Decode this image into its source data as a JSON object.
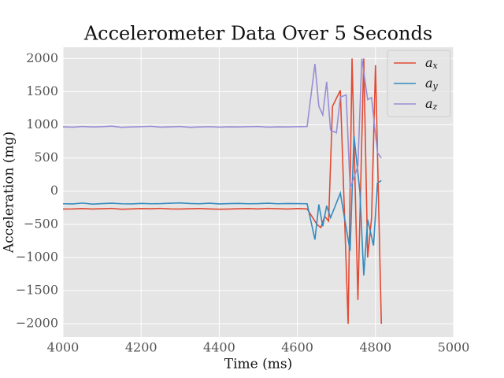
{
  "chart_data": {
    "type": "line",
    "title": "Accelerometer Data Over 5 Seconds",
    "x_label": "Time (ms)",
    "y_label": "Acceleration (mg)",
    "xlim": [
      4000,
      5000
    ],
    "xticks": [
      4000,
      4200,
      4400,
      4600,
      4800,
      5000
    ],
    "ylim": [
      -2200,
      2170
    ],
    "yticks": [
      {
        "value": -2000,
        "label": "−2000"
      },
      {
        "value": -1500,
        "label": "−1500"
      },
      {
        "value": -1000,
        "label": "−1000"
      },
      {
        "value": -500,
        "label": "−500"
      },
      0,
      500,
      1000,
      1500,
      2000
    ],
    "grid": true,
    "legend": "upper right",
    "series": [
      {
        "name": "a_x",
        "color": "#e24a33",
        "x": [
          4000,
          4025,
          4050,
          4075,
          4100,
          4125,
          4150,
          4175,
          4200,
          4225,
          4250,
          4275,
          4300,
          4325,
          4350,
          4375,
          4400,
          4425,
          4450,
          4475,
          4500,
          4525,
          4550,
          4575,
          4600,
          4625,
          4650,
          4660,
          4670,
          4680,
          4690,
          4710,
          4730,
          4740,
          4755,
          4770,
          4780,
          4790,
          4800,
          4815
        ],
        "values": [
          -270,
          -268,
          -262,
          -270,
          -265,
          -260,
          -272,
          -268,
          -262,
          -265,
          -260,
          -268,
          -270,
          -265,
          -262,
          -268,
          -272,
          -270,
          -265,
          -262,
          -268,
          -260,
          -265,
          -270,
          -262,
          -268,
          -500,
          -550,
          -380,
          -450,
          1280,
          1520,
          -2000,
          2000,
          -1640,
          2000,
          -1000,
          -400,
          1900,
          -2000
        ]
      },
      {
        "name": "a_y",
        "color": "#348abd",
        "x": [
          4000,
          4025,
          4050,
          4075,
          4100,
          4125,
          4150,
          4175,
          4200,
          4225,
          4250,
          4275,
          4300,
          4325,
          4350,
          4375,
          4400,
          4425,
          4450,
          4475,
          4500,
          4525,
          4550,
          4575,
          4600,
          4625,
          4645,
          4655,
          4665,
          4675,
          4685,
          4710,
          4735,
          4745,
          4760,
          4770,
          4780,
          4795,
          4805,
          4815
        ],
        "values": [
          -190,
          -192,
          -180,
          -195,
          -188,
          -182,
          -190,
          -192,
          -185,
          -190,
          -188,
          -182,
          -178,
          -186,
          -190,
          -182,
          -192,
          -188,
          -185,
          -190,
          -188,
          -182,
          -190,
          -186,
          -188,
          -190,
          -730,
          -200,
          -530,
          -220,
          -400,
          -30,
          -900,
          830,
          0,
          -1270,
          -430,
          -820,
          120,
          160
        ]
      },
      {
        "name": "a_z",
        "color": "#988ed5",
        "x": [
          4000,
          4025,
          4050,
          4075,
          4100,
          4125,
          4150,
          4175,
          4200,
          4225,
          4250,
          4275,
          4300,
          4325,
          4350,
          4375,
          4400,
          4425,
          4450,
          4475,
          4500,
          4525,
          4550,
          4575,
          4600,
          4625,
          4645,
          4655,
          4665,
          4675,
          4685,
          4700,
          4710,
          4725,
          4735,
          4745,
          4755,
          4765,
          4780,
          4790,
          4805,
          4815
        ],
        "values": [
          970,
          965,
          975,
          968,
          972,
          980,
          962,
          968,
          972,
          978,
          965,
          970,
          975,
          962,
          968,
          972,
          966,
          970,
          968,
          972,
          975,
          965,
          970,
          968,
          972,
          975,
          1920,
          1280,
          1150,
          1650,
          920,
          880,
          1420,
          1450,
          50,
          200,
          380,
          2000,
          1380,
          1410,
          580,
          500
        ]
      }
    ]
  }
}
